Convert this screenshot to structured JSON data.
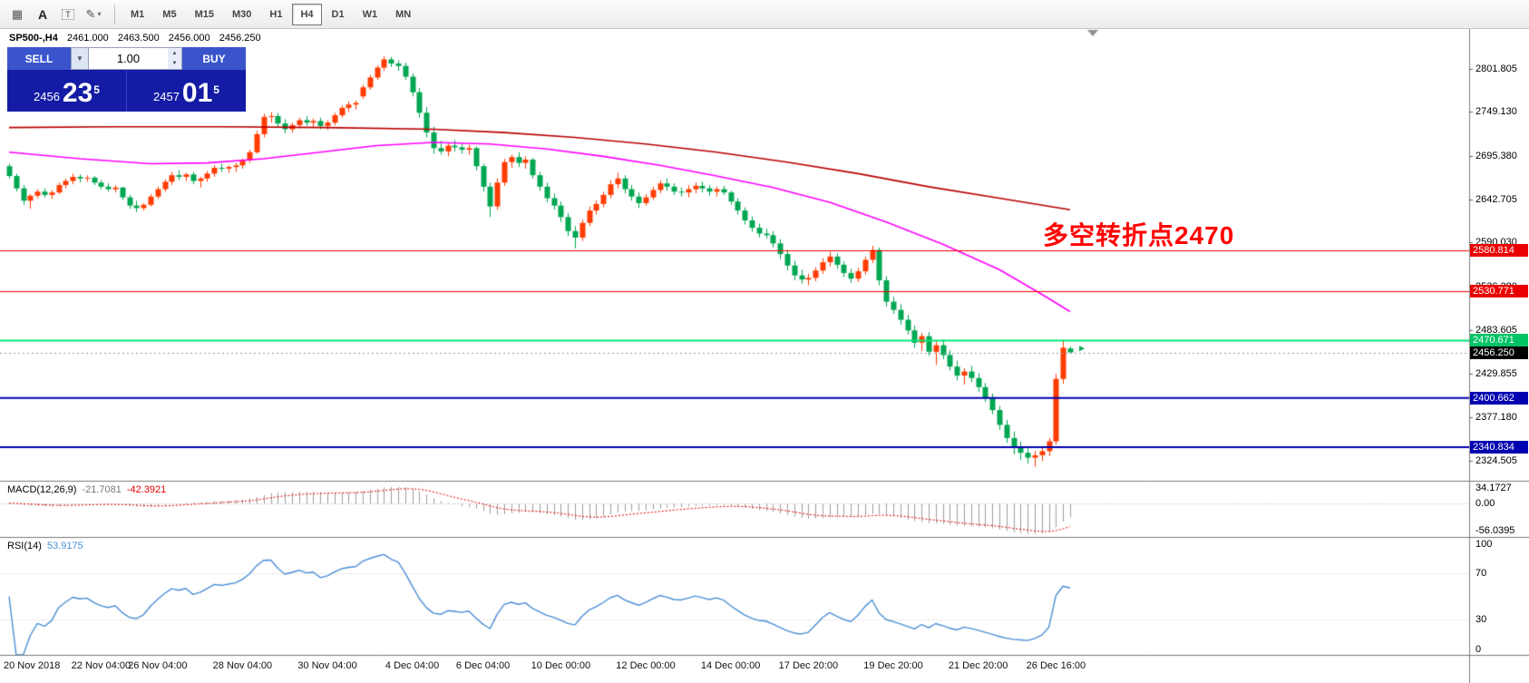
{
  "toolbar": {
    "icons": [
      {
        "name": "grid",
        "glyph": "▦"
      },
      {
        "name": "text-label",
        "glyph": "A"
      },
      {
        "name": "text-box",
        "glyph": "T"
      },
      {
        "name": "draw",
        "glyph": "✎"
      },
      {
        "name": "dropdown",
        "glyph": "▾"
      }
    ],
    "timeframes": [
      "M1",
      "M5",
      "M15",
      "M30",
      "H1",
      "H4",
      "D1",
      "W1",
      "MN"
    ],
    "selected": "H4"
  },
  "header": {
    "symbol": "SP500-,H4",
    "open": "2461.000",
    "high": "2463.500",
    "low": "2456.000",
    "close": "2456.250"
  },
  "trade_panel": {
    "sell_label": "SELL",
    "buy_label": "BUY",
    "volume": "1.00",
    "bid": {
      "big_figure": "2456",
      "pips": "23",
      "pipette": "5"
    },
    "ask": {
      "big_figure": "2457",
      "pips": "01",
      "pipette": "5"
    }
  },
  "annotation": {
    "text": "多空转折点2470",
    "color": "#ff0000"
  },
  "price_axis": {
    "ticks": [
      "2801.805",
      "2749.130",
      "2695.380",
      "2642.705",
      "2590.030",
      "2536.380",
      "2483.605",
      "2429.855",
      "2377.180",
      "2324.505"
    ]
  },
  "levels": [
    {
      "price": 2580.814,
      "label": "2580.814",
      "color": "#ff0000",
      "width": 1,
      "badge": "#ea0000"
    },
    {
      "price": 2530.771,
      "label": "2530.771",
      "color": "#ff0000",
      "width": 1,
      "badge": "#ea0000"
    },
    {
      "price": 2470.671,
      "label": "2470.671",
      "color": "#00e676",
      "width": 2,
      "badge": "#00c463"
    },
    {
      "price": 2400.662,
      "label": "2400.662",
      "color": "#0000b0",
      "width": 2,
      "badge": "#0000b0"
    },
    {
      "price": 2340.834,
      "label": "2340.834",
      "color": "#0000b0",
      "width": 2,
      "badge": "#0000b0"
    }
  ],
  "current_price": {
    "value": 2456.25,
    "label": "2456.250"
  },
  "macd": {
    "label": "MACD(12,26,9)",
    "value_main": "-21.7081",
    "value_signal": "-42.3921",
    "axis": [
      "34.1727",
      "0.00",
      "-56.0395"
    ],
    "axis_values": [
      34.1727,
      0,
      -56.0395
    ]
  },
  "rsi": {
    "label": "RSI(14)",
    "value": "53.9175",
    "axis": [
      "100",
      "70",
      "30",
      "0"
    ],
    "axis_values": [
      100,
      70,
      30,
      0
    ],
    "levels": [
      70,
      30
    ]
  },
  "time_axis": [
    {
      "label": "20 Nov 2018",
      "bar": 0
    },
    {
      "label": "22 Nov 04:00",
      "bar": 13
    },
    {
      "label": "26 Nov 04:00",
      "bar": 21
    },
    {
      "label": "28 Nov 04:00",
      "bar": 33
    },
    {
      "label": "30 Nov 04:00",
      "bar": 45
    },
    {
      "label": "4 Dec 04:00",
      "bar": 57
    },
    {
      "label": "6 Dec 04:00",
      "bar": 67
    },
    {
      "label": "10 Dec 00:00",
      "bar": 78
    },
    {
      "label": "12 Dec 00:00",
      "bar": 90
    },
    {
      "label": "14 Dec 00:00",
      "bar": 102
    },
    {
      "label": "17 Dec 20:00",
      "bar": 113
    },
    {
      "label": "19 Dec 20:00",
      "bar": 125
    },
    {
      "label": "21 Dec 20:00",
      "bar": 137
    },
    {
      "label": "26 Dec 16:00",
      "bar": 148
    }
  ],
  "colors": {
    "up": "#ff3c00",
    "down": "#00a651",
    "ma_fast": "#ff00ff",
    "ma_slow": "#bb0000",
    "macd_hist": "#9e9e9e",
    "macd_signal": "#e60000",
    "rsi_line": "#4b8fd5",
    "axis_line": "#7a7a7a",
    "annotation": "#ff0000",
    "current_badge": "#000000",
    "trade_button": "#3a55cc",
    "trade_panel_bg": "#141ba4"
  },
  "chart_data": {
    "type": "candlestick",
    "symbol": "SP500-",
    "timeframe": "H4",
    "price_range": [
      2300,
      2850
    ],
    "candles": [
      [
        2683,
        2686,
        2668,
        2671
      ],
      [
        2671,
        2674,
        2652,
        2656
      ],
      [
        2656,
        2660,
        2636,
        2641
      ],
      [
        2641,
        2649,
        2631,
        2647
      ],
      [
        2647,
        2655,
        2644,
        2652
      ],
      [
        2652,
        2656,
        2645,
        2648
      ],
      [
        2648,
        2654,
        2643,
        2651
      ],
      [
        2651,
        2663,
        2649,
        2660
      ],
      [
        2660,
        2668,
        2656,
        2665
      ],
      [
        2665,
        2674,
        2661,
        2670
      ],
      [
        2670,
        2673,
        2663,
        2668
      ],
      [
        2668,
        2672,
        2664,
        2669
      ],
      [
        2669,
        2671,
        2660,
        2663
      ],
      [
        2663,
        2666,
        2655,
        2658
      ],
      [
        2658,
        2662,
        2652,
        2655
      ],
      [
        2655,
        2660,
        2651,
        2657
      ],
      [
        2657,
        2658,
        2642,
        2645
      ],
      [
        2645,
        2648,
        2631,
        2635
      ],
      [
        2635,
        2641,
        2627,
        2632
      ],
      [
        2632,
        2638,
        2629,
        2636
      ],
      [
        2636,
        2649,
        2634,
        2646
      ],
      [
        2646,
        2658,
        2643,
        2655
      ],
      [
        2655,
        2667,
        2652,
        2664
      ],
      [
        2664,
        2676,
        2660,
        2672
      ],
      [
        2672,
        2678,
        2666,
        2670
      ],
      [
        2670,
        2675,
        2665,
        2673
      ],
      [
        2673,
        2676,
        2661,
        2665
      ],
      [
        2665,
        2670,
        2657,
        2668
      ],
      [
        2668,
        2677,
        2664,
        2674
      ],
      [
        2674,
        2684,
        2670,
        2681
      ],
      [
        2681,
        2686,
        2676,
        2680
      ],
      [
        2680,
        2684,
        2675,
        2682
      ],
      [
        2682,
        2687,
        2676,
        2684
      ],
      [
        2684,
        2692,
        2680,
        2690
      ],
      [
        2690,
        2703,
        2687,
        2700
      ],
      [
        2700,
        2726,
        2698,
        2722
      ],
      [
        2722,
        2747,
        2718,
        2743
      ],
      [
        2743,
        2749,
        2736,
        2744
      ],
      [
        2744,
        2748,
        2730,
        2735
      ],
      [
        2735,
        2740,
        2723,
        2728
      ],
      [
        2728,
        2736,
        2724,
        2733
      ],
      [
        2733,
        2742,
        2729,
        2739
      ],
      [
        2739,
        2744,
        2732,
        2736
      ],
      [
        2736,
        2741,
        2730,
        2738
      ],
      [
        2738,
        2742,
        2728,
        2732
      ],
      [
        2732,
        2739,
        2727,
        2736
      ],
      [
        2736,
        2748,
        2733,
        2745
      ],
      [
        2745,
        2757,
        2742,
        2754
      ],
      [
        2754,
        2762,
        2749,
        2758
      ],
      [
        2758,
        2763,
        2752,
        2760
      ],
      [
        2768,
        2782,
        2765,
        2779
      ],
      [
        2779,
        2794,
        2776,
        2791
      ],
      [
        2791,
        2806,
        2788,
        2803
      ],
      [
        2803,
        2817,
        2799,
        2813
      ],
      [
        2813,
        2816,
        2804,
        2808
      ],
      [
        2808,
        2812,
        2799,
        2805
      ],
      [
        2805,
        2809,
        2788,
        2792
      ],
      [
        2792,
        2796,
        2768,
        2773
      ],
      [
        2773,
        2778,
        2742,
        2748
      ],
      [
        2748,
        2755,
        2718,
        2724
      ],
      [
        2724,
        2731,
        2698,
        2705
      ],
      [
        2705,
        2714,
        2697,
        2701
      ],
      [
        2701,
        2712,
        2695,
        2708
      ],
      [
        2708,
        2715,
        2701,
        2706
      ],
      [
        2706,
        2711,
        2698,
        2703
      ],
      [
        2703,
        2709,
        2697,
        2705
      ],
      [
        2705,
        2707,
        2678,
        2683
      ],
      [
        2683,
        2686,
        2652,
        2658
      ],
      [
        2658,
        2663,
        2621,
        2634
      ],
      [
        2634,
        2668,
        2630,
        2663
      ],
      [
        2663,
        2692,
        2659,
        2688
      ],
      [
        2688,
        2697,
        2681,
        2694
      ],
      [
        2694,
        2700,
        2682,
        2687
      ],
      [
        2687,
        2695,
        2680,
        2691
      ],
      [
        2691,
        2693,
        2668,
        2672
      ],
      [
        2672,
        2676,
        2653,
        2658
      ],
      [
        2658,
        2663,
        2639,
        2644
      ],
      [
        2644,
        2650,
        2630,
        2635
      ],
      [
        2635,
        2640,
        2615,
        2621
      ],
      [
        2621,
        2626,
        2598,
        2604
      ],
      [
        2604,
        2610,
        2583,
        2596
      ],
      [
        2596,
        2618,
        2592,
        2614
      ],
      [
        2614,
        2634,
        2610,
        2629
      ],
      [
        2629,
        2641,
        2624,
        2637
      ],
      [
        2637,
        2652,
        2633,
        2648
      ],
      [
        2648,
        2666,
        2644,
        2661
      ],
      [
        2661,
        2675,
        2656,
        2668
      ],
      [
        2668,
        2672,
        2650,
        2655
      ],
      [
        2655,
        2660,
        2641,
        2646
      ],
      [
        2646,
        2651,
        2632,
        2638
      ],
      [
        2638,
        2649,
        2635,
        2645
      ],
      [
        2645,
        2658,
        2642,
        2654
      ],
      [
        2654,
        2666,
        2650,
        2662
      ],
      [
        2662,
        2668,
        2653,
        2658
      ],
      [
        2658,
        2662,
        2648,
        2652
      ],
      [
        2652,
        2657,
        2646,
        2651
      ],
      [
        2651,
        2660,
        2645,
        2655
      ],
      [
        2655,
        2663,
        2650,
        2659
      ],
      [
        2659,
        2664,
        2651,
        2656
      ],
      [
        2656,
        2660,
        2647,
        2652
      ],
      [
        2652,
        2658,
        2646,
        2655
      ],
      [
        2655,
        2659,
        2648,
        2651
      ],
      [
        2651,
        2653,
        2636,
        2640
      ],
      [
        2640,
        2644,
        2624,
        2629
      ],
      [
        2629,
        2633,
        2612,
        2617
      ],
      [
        2617,
        2622,
        2603,
        2608
      ],
      [
        2608,
        2613,
        2596,
        2601
      ],
      [
        2601,
        2607,
        2595,
        2599
      ],
      [
        2599,
        2604,
        2584,
        2589
      ],
      [
        2589,
        2594,
        2570,
        2576
      ],
      [
        2576,
        2581,
        2556,
        2562
      ],
      [
        2562,
        2568,
        2544,
        2550
      ],
      [
        2550,
        2557,
        2540,
        2545
      ],
      [
        2545,
        2552,
        2538,
        2547
      ],
      [
        2547,
        2560,
        2543,
        2556
      ],
      [
        2556,
        2571,
        2552,
        2566
      ],
      [
        2566,
        2579,
        2561,
        2573
      ],
      [
        2573,
        2577,
        2558,
        2563
      ],
      [
        2563,
        2567,
        2548,
        2553
      ],
      [
        2553,
        2558,
        2541,
        2546
      ],
      [
        2546,
        2559,
        2542,
        2555
      ],
      [
        2555,
        2573,
        2551,
        2569
      ],
      [
        2569,
        2586,
        2565,
        2581
      ],
      [
        2581,
        2584,
        2538,
        2544
      ],
      [
        2544,
        2549,
        2512,
        2518
      ],
      [
        2518,
        2524,
        2503,
        2508
      ],
      [
        2508,
        2515,
        2490,
        2496
      ],
      [
        2496,
        2502,
        2478,
        2483
      ],
      [
        2483,
        2489,
        2462,
        2468
      ],
      [
        2468,
        2480,
        2458,
        2476
      ],
      [
        2476,
        2481,
        2452,
        2457
      ],
      [
        2457,
        2470,
        2441,
        2465
      ],
      [
        2465,
        2472,
        2448,
        2453
      ],
      [
        2453,
        2459,
        2434,
        2439
      ],
      [
        2439,
        2446,
        2422,
        2428
      ],
      [
        2428,
        2437,
        2417,
        2433
      ],
      [
        2433,
        2440,
        2420,
        2425
      ],
      [
        2425,
        2431,
        2408,
        2414
      ],
      [
        2414,
        2419,
        2396,
        2401
      ],
      [
        2401,
        2406,
        2381,
        2386
      ],
      [
        2386,
        2391,
        2362,
        2368
      ],
      [
        2368,
        2374,
        2346,
        2352
      ],
      [
        2352,
        2360,
        2332,
        2340
      ],
      [
        2340,
        2348,
        2325,
        2334
      ],
      [
        2334,
        2341,
        2321,
        2328
      ],
      [
        2328,
        2336,
        2317,
        2331
      ],
      [
        2331,
        2340,
        2324,
        2336
      ],
      [
        2336,
        2352,
        2330,
        2348
      ],
      [
        2348,
        2430,
        2344,
        2424
      ],
      [
        2424,
        2472,
        2418,
        2462
      ],
      [
        2461,
        2463.5,
        2456,
        2456.25
      ]
    ],
    "ma_fast": {
      "period_hint": 50,
      "points": [
        [
          0,
          2700
        ],
        [
          10,
          2692
        ],
        [
          20,
          2686
        ],
        [
          28,
          2687
        ],
        [
          36,
          2692
        ],
        [
          44,
          2700
        ],
        [
          52,
          2708
        ],
        [
          60,
          2712
        ],
        [
          68,
          2710
        ],
        [
          76,
          2704
        ],
        [
          84,
          2695
        ],
        [
          92,
          2684
        ],
        [
          100,
          2671
        ],
        [
          108,
          2657
        ],
        [
          116,
          2639
        ],
        [
          124,
          2615
        ],
        [
          132,
          2588
        ],
        [
          140,
          2557
        ],
        [
          146,
          2527
        ],
        [
          150,
          2506
        ]
      ]
    },
    "ma_slow": {
      "period_hint": 200,
      "points": [
        [
          0,
          2730
        ],
        [
          15,
          2731
        ],
        [
          30,
          2731
        ],
        [
          45,
          2730
        ],
        [
          60,
          2728
        ],
        [
          70,
          2724
        ],
        [
          80,
          2718
        ],
        [
          90,
          2710
        ],
        [
          100,
          2700
        ],
        [
          110,
          2688
        ],
        [
          120,
          2674
        ],
        [
          130,
          2658
        ],
        [
          140,
          2644
        ],
        [
          150,
          2630
        ]
      ]
    }
  }
}
